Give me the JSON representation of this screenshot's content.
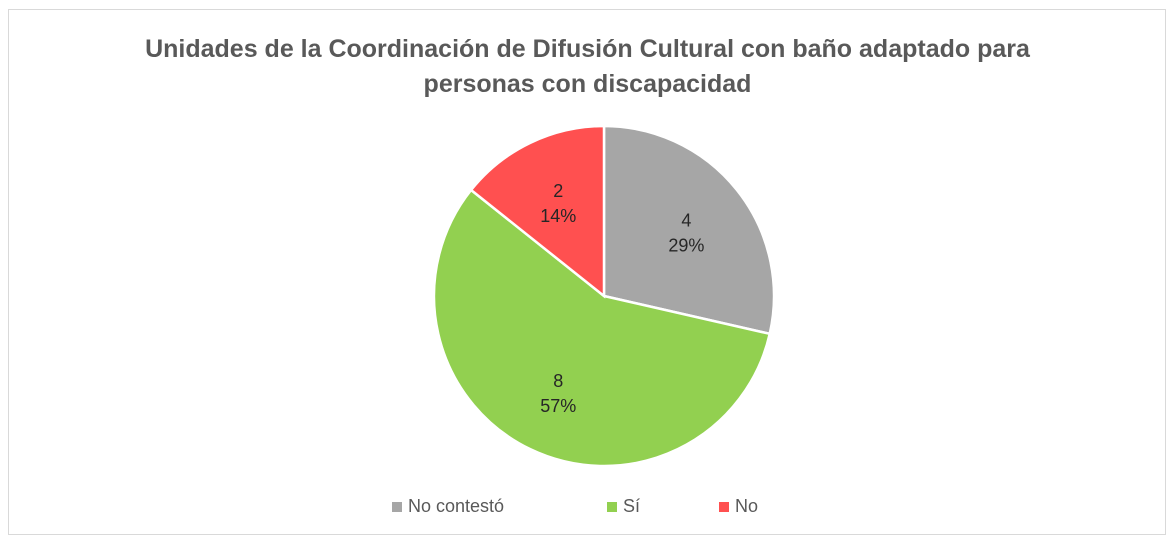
{
  "chart_data": {
    "type": "pie",
    "title_lines": [
      "Unidades de la Coordinación de Difusión Cultural con baño adaptado para",
      "personas con discapacidad"
    ],
    "categories": [
      "No contestó",
      "Sí",
      "No"
    ],
    "values": [
      4,
      8,
      2
    ],
    "percent_labels": [
      "29%",
      "57%",
      "14%"
    ],
    "colors": [
      "#a6a6a6",
      "#92d050",
      "#ff5050"
    ],
    "legend_position": "bottom"
  }
}
